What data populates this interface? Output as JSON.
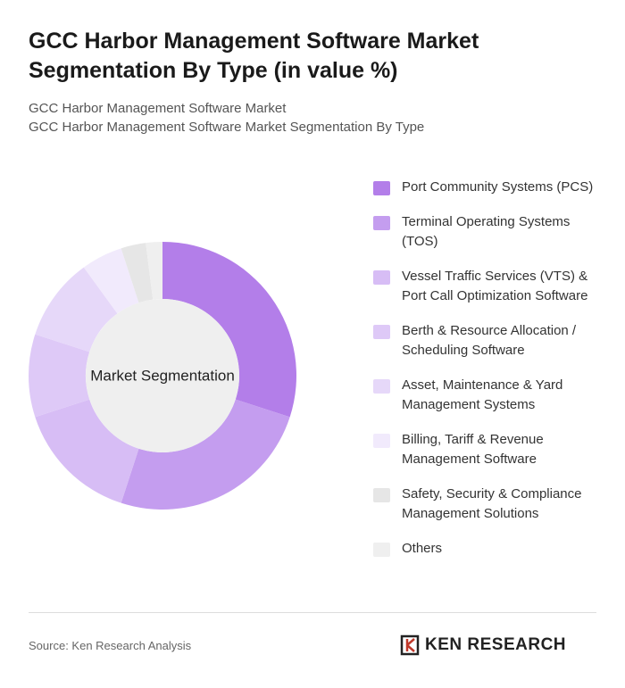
{
  "chart_data": {
    "type": "donut",
    "title": "GCC Harbor Management Software Market Segmentation By Type (in value %)",
    "subtitle": [
      "GCC Harbor Management Software Market",
      "GCC Harbor Management Software Market Segmentation By Type"
    ],
    "center_label": "Market Segmentation",
    "categories": [
      "Port Community Systems (PCS)",
      "Terminal Operating Systems (TOS)",
      "Vessel Traffic Services (VTS) & Port Call Optimization Software",
      "Berth & Resource Allocation / Scheduling Software",
      "Asset, Maintenance & Yard Management Systems",
      "Billing, Tariff & Revenue Management Software",
      "Safety, Security & Compliance Management Solutions",
      "Others"
    ],
    "values": [
      30,
      25,
      15,
      10,
      10,
      5,
      3,
      2
    ],
    "colors": [
      "#b37ee9",
      "#c49def",
      "#d7bdf5",
      "#dec9f7",
      "#e6d8f9",
      "#f1eafc",
      "#e6e6e6",
      "#efefef"
    ],
    "source": "Source: Ken Research Analysis",
    "brand": "KEN RESEARCH"
  }
}
